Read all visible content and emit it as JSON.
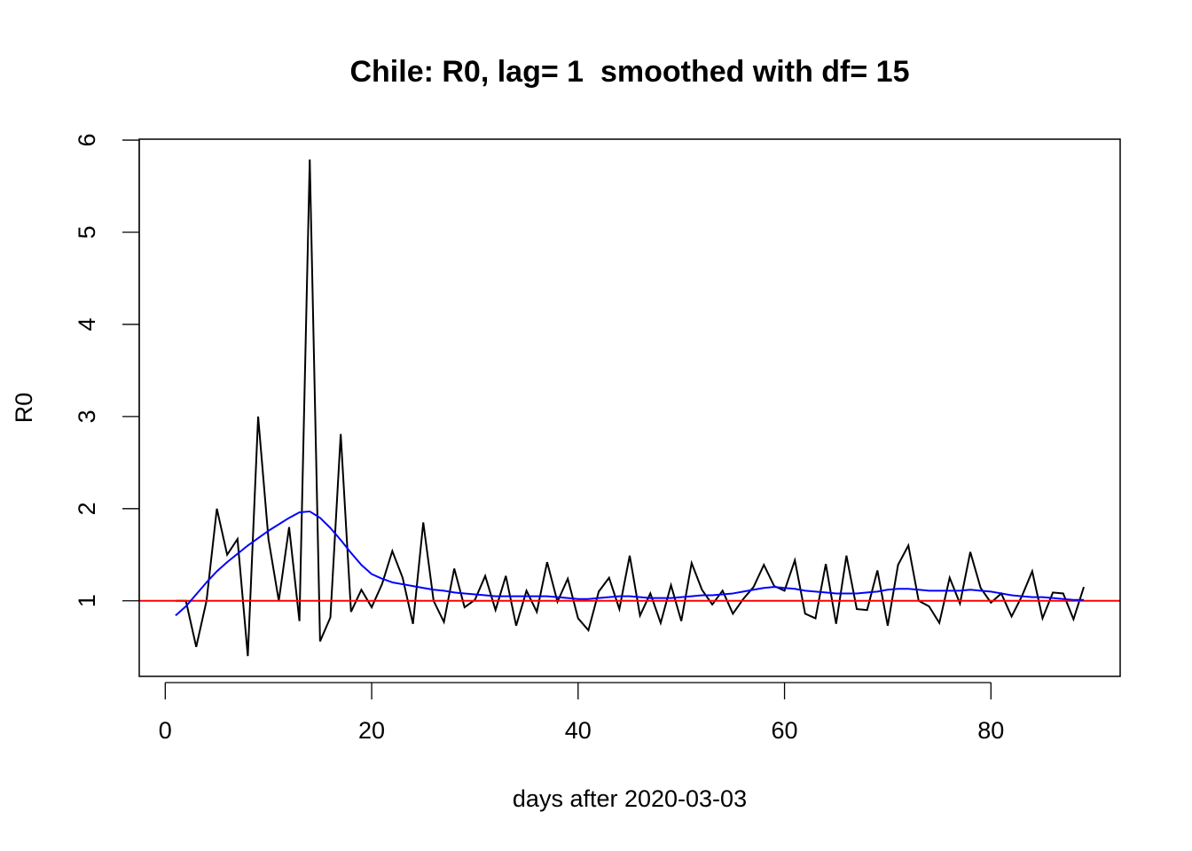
{
  "chart_data": {
    "type": "line",
    "title": "Chile: R0, lag= 1  smoothed with df= 15",
    "xlabel": "days after 2020-03-03",
    "ylabel": "R0",
    "xlim": [
      -2.52,
      92.52
    ],
    "ylim": [
      0.18,
      6.01
    ],
    "x_ticks": [
      0,
      20,
      40,
      60,
      80
    ],
    "x_tick_labels": [
      "0",
      "20",
      "40",
      "60",
      "80"
    ],
    "y_ticks": [
      1,
      2,
      3,
      4,
      5,
      6
    ],
    "y_tick_labels": [
      "1",
      "2",
      "3",
      "4",
      "5",
      "6"
    ],
    "grid": false,
    "reference_line": {
      "y": 1,
      "color": "#ff0000"
    },
    "x": [
      1,
      2,
      3,
      4,
      5,
      6,
      7,
      8,
      9,
      10,
      11,
      12,
      13,
      14,
      15,
      16,
      17,
      18,
      19,
      20,
      21,
      22,
      23,
      24,
      25,
      26,
      27,
      28,
      29,
      30,
      31,
      32,
      33,
      34,
      35,
      36,
      37,
      38,
      39,
      40,
      41,
      42,
      43,
      44,
      45,
      46,
      47,
      48,
      49,
      50,
      51,
      52,
      53,
      54,
      55,
      56,
      57,
      58,
      59,
      60,
      61,
      62,
      63,
      64,
      65,
      66,
      67,
      68,
      69,
      70,
      71,
      72,
      73,
      74,
      75,
      76,
      77,
      78,
      79,
      80,
      81,
      82,
      83,
      84,
      85,
      86,
      87,
      88,
      89
    ],
    "series": [
      {
        "name": "R0",
        "color": "#000000",
        "values": [
          1.0,
          1.0,
          0.5,
          1.0,
          2.0,
          1.5,
          1.67,
          0.4,
          3.0,
          1.67,
          1.0,
          1.8,
          0.78,
          5.79,
          0.56,
          0.82,
          2.81,
          0.88,
          1.12,
          0.93,
          1.18,
          1.54,
          1.25,
          0.75,
          1.85,
          1.0,
          0.77,
          1.35,
          0.93,
          1.01,
          1.27,
          0.9,
          1.27,
          0.73,
          1.11,
          0.88,
          1.42,
          0.99,
          1.24,
          0.81,
          0.68,
          1.1,
          1.25,
          0.91,
          1.49,
          0.84,
          1.08,
          0.76,
          1.17,
          0.78,
          1.41,
          1.12,
          0.96,
          1.11,
          0.86,
          1.02,
          1.15,
          1.39,
          1.16,
          1.11,
          1.44,
          0.86,
          0.81,
          1.4,
          0.75,
          1.49,
          0.91,
          0.9,
          1.33,
          0.73,
          1.39,
          1.6,
          1.0,
          0.94,
          0.76,
          1.25,
          0.97,
          1.53,
          1.14,
          0.98,
          1.08,
          0.83,
          1.05,
          1.32,
          0.81,
          1.09,
          1.08,
          0.8,
          1.15
        ]
      },
      {
        "name": "smoothed (df=15)",
        "color": "#0000ff",
        "values": [
          0.84,
          0.94,
          1.07,
          1.2,
          1.32,
          1.42,
          1.51,
          1.6,
          1.68,
          1.76,
          1.83,
          1.9,
          1.96,
          1.97,
          1.9,
          1.79,
          1.66,
          1.52,
          1.39,
          1.29,
          1.24,
          1.2,
          1.18,
          1.16,
          1.14,
          1.12,
          1.11,
          1.09,
          1.08,
          1.07,
          1.06,
          1.05,
          1.05,
          1.05,
          1.05,
          1.05,
          1.05,
          1.04,
          1.03,
          1.02,
          1.02,
          1.03,
          1.04,
          1.05,
          1.05,
          1.04,
          1.03,
          1.03,
          1.03,
          1.04,
          1.05,
          1.06,
          1.06,
          1.07,
          1.08,
          1.1,
          1.12,
          1.14,
          1.15,
          1.14,
          1.13,
          1.11,
          1.1,
          1.09,
          1.08,
          1.08,
          1.08,
          1.09,
          1.1,
          1.12,
          1.13,
          1.13,
          1.12,
          1.11,
          1.11,
          1.11,
          1.11,
          1.12,
          1.11,
          1.1,
          1.08,
          1.06,
          1.05,
          1.04,
          1.04,
          1.03,
          1.02,
          1.01,
          1.01
        ]
      }
    ]
  }
}
